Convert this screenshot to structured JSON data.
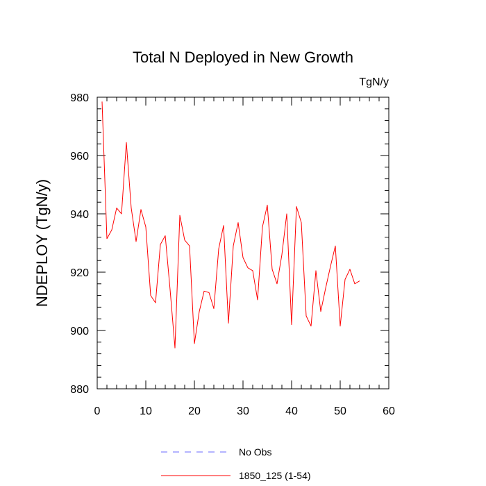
{
  "chart_data": {
    "type": "line",
    "title": "Total N Deployed in New Growth",
    "units": "TgN/y",
    "ylabel": "NDEPLOY  (TgN/y)",
    "xlabel": "",
    "xlim": [
      0,
      60
    ],
    "ylim": [
      880,
      980
    ],
    "xticks": [
      0,
      10,
      20,
      30,
      40,
      50,
      60
    ],
    "yticks": [
      880,
      900,
      920,
      940,
      960,
      980
    ],
    "xtick_labels": [
      "0",
      "10",
      "20",
      "30",
      "40",
      "50",
      "60"
    ],
    "ytick_labels": [
      "880",
      "900",
      "920",
      "940",
      "960",
      "980"
    ],
    "grid": false,
    "legend_position": "bottom",
    "series": [
      {
        "name": "1850_125 (1-54)",
        "color": "#ff0000",
        "style": "solid",
        "x": [
          1,
          2,
          3,
          4,
          5,
          6,
          7,
          8,
          9,
          10,
          11,
          12,
          13,
          14,
          15,
          16,
          17,
          18,
          19,
          20,
          21,
          22,
          23,
          24,
          25,
          26,
          27,
          28,
          29,
          30,
          31,
          32,
          33,
          34,
          35,
          36,
          37,
          38,
          39,
          40,
          41,
          42,
          43,
          44,
          45,
          46,
          47,
          48,
          49,
          50,
          51,
          52,
          53,
          54
        ],
        "y": [
          978.5,
          931.5,
          934.5,
          942,
          940,
          964.5,
          942,
          930.5,
          941.5,
          935.5,
          912,
          909.5,
          929.5,
          932.5,
          914,
          894,
          939.5,
          931,
          929,
          895.5,
          906.5,
          913.5,
          913,
          907.5,
          928,
          936,
          902.5,
          929,
          937,
          925,
          921.5,
          920.5,
          910.5,
          935.5,
          943,
          921,
          916,
          926,
          940,
          902,
          942.5,
          937,
          905,
          901.5,
          920.5,
          906.5,
          914.5,
          922,
          929,
          901.5,
          917.5,
          921,
          916,
          917
        ]
      },
      {
        "name": "No Obs",
        "color": "#6a6aff",
        "style": "dashed",
        "x": [],
        "y": []
      }
    ]
  }
}
